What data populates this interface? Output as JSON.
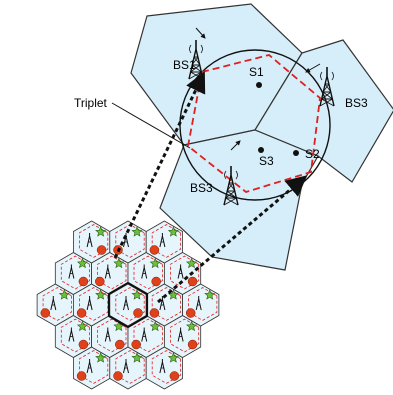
{
  "labels": {
    "triplet": "Triplet",
    "bs1": "BS1",
    "bs3_right": "BS3",
    "bs3_bottom": "BS3",
    "s1": "S1",
    "s2": "S2",
    "s3": "S3"
  },
  "colors": {
    "cell_fill": "#d6eef9",
    "circle_dash": "#e02020",
    "star_fill": "#6cbf3a",
    "dot_fill": "#e0401a",
    "arrow": "#111111"
  }
}
